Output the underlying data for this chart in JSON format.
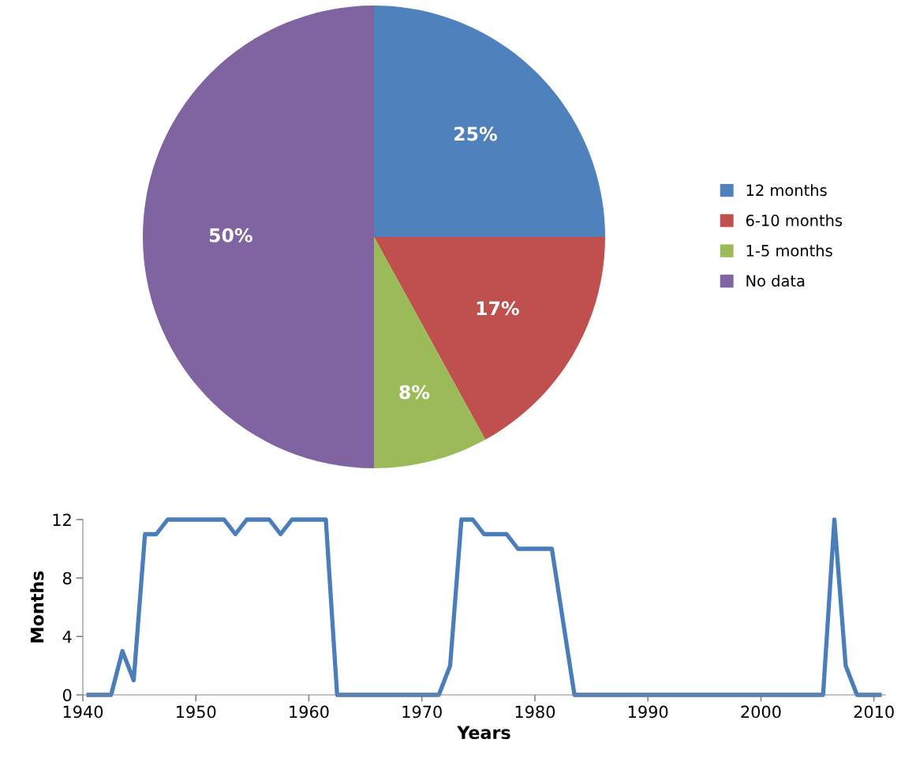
{
  "chart_data": [
    {
      "type": "pie",
      "categories": [
        "12 months",
        "6-10 months",
        "1-5 months",
        "No data"
      ],
      "values": [
        25,
        17,
        8,
        50
      ],
      "colors": [
        "#4f81bd",
        "#c0504d",
        "#9bbb59",
        "#8064a2"
      ],
      "value_labels": [
        "25%",
        "17%",
        "8%",
        "50%"
      ],
      "legend": "right"
    },
    {
      "type": "line",
      "xlabel": "Years",
      "ylabel": "Months",
      "xlim": [
        1940,
        2011
      ],
      "xticks": [
        1940,
        1950,
        1960,
        1970,
        1980,
        1990,
        2000,
        2010
      ],
      "ylim": [
        0,
        12
      ],
      "yticks": [
        0,
        4,
        8,
        12
      ],
      "grid": false,
      "legend": false,
      "marker": "none",
      "line_style": "solid",
      "series": [
        {
          "color": "#4a7ebb",
          "x": [
            1940.5,
            1942.5,
            1943.5,
            1944.5,
            1945.5,
            1946.5,
            1947.5,
            1952.5,
            1953.5,
            1954.5,
            1956.5,
            1957.5,
            1958.5,
            1961.5,
            1962.5,
            1971.5,
            1972.5,
            1973.5,
            1974.5,
            1975.5,
            1977.5,
            1978.5,
            1981.5,
            1983.5,
            2005.5,
            2006.5,
            2007.5,
            2008.5,
            2010.5
          ],
          "values": [
            0,
            0,
            3,
            1,
            11,
            11,
            12,
            12,
            11,
            12,
            12,
            11,
            12,
            12,
            0,
            0,
            2,
            12,
            12,
            11,
            11,
            10,
            10,
            0,
            0,
            12,
            2,
            0,
            0
          ]
        }
      ]
    }
  ]
}
